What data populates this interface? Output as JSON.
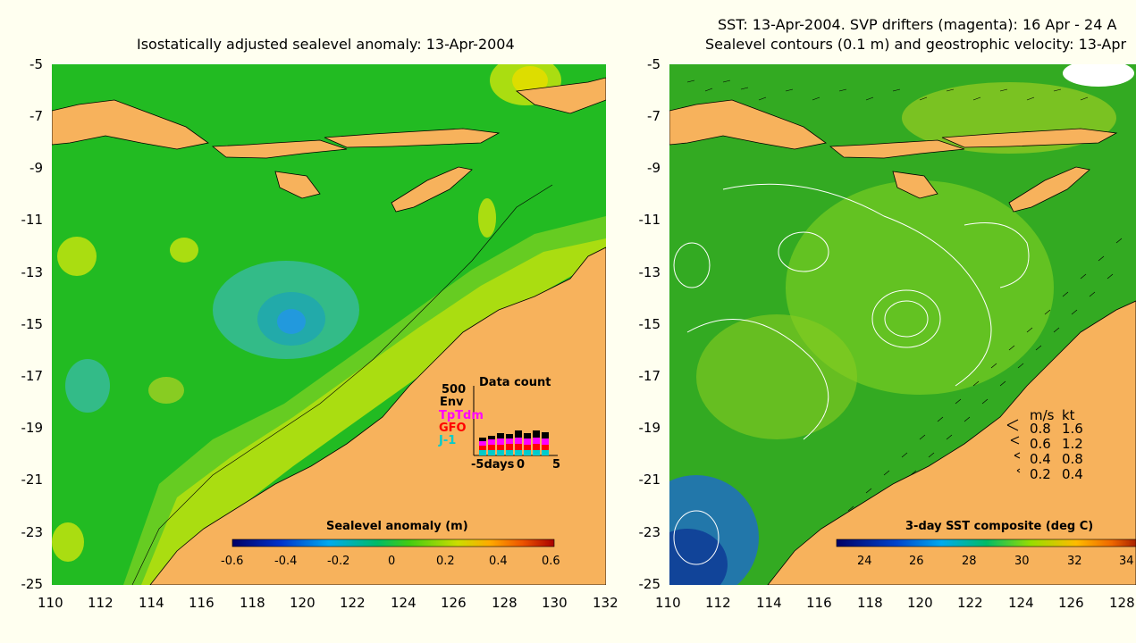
{
  "left": {
    "title": "Isostatically adjusted sealevel anomaly: 13-Apr-2004",
    "colorbar": {
      "label": "Sealevel anomaly (m)",
      "ticks": [
        "-0.6",
        "-0.4",
        "-0.2",
        "0",
        "0.2",
        "0.4",
        "0.6"
      ]
    },
    "data_count": {
      "title": "Data count",
      "scale_label": "500",
      "legend": [
        {
          "label": "Env",
          "color": "#000000"
        },
        {
          "label": "TpTdm",
          "color": "#ff00ff"
        },
        {
          "label": "GFO",
          "color": "#ff0000"
        },
        {
          "label": "J-1",
          "color": "#00cccc"
        }
      ],
      "xlabel_left": "-5days",
      "xlabel_mid": "0",
      "xlabel_right": "5"
    },
    "xticks": [
      "110",
      "112",
      "114",
      "116",
      "118",
      "120",
      "122",
      "124",
      "126",
      "128",
      "130",
      "132"
    ]
  },
  "right": {
    "title_line1": "SST: 13-Apr-2004. SVP drifters (magenta): 16 Apr - 24 A",
    "title_line2": "Sealevel contours (0.1 m) and geostrophic velocity: 13-Apr",
    "colorbar": {
      "label": "3-day SST composite (deg C)",
      "ticks": [
        "24",
        "26",
        "28",
        "30",
        "32",
        "34"
      ]
    },
    "speed_legend": {
      "header_ms": "m/s",
      "header_kt": "kt",
      "rows": [
        {
          "ms": "0.8",
          "kt": "1.6"
        },
        {
          "ms": "0.6",
          "kt": "1.2"
        },
        {
          "ms": "0.4",
          "kt": "0.8"
        },
        {
          "ms": "0.2",
          "kt": "0.4"
        }
      ]
    },
    "xticks": [
      "110",
      "112",
      "114",
      "116",
      "118",
      "120",
      "122",
      "124",
      "126",
      "128"
    ]
  },
  "yticks": [
    "-5",
    "-7",
    "-9",
    "-11",
    "-13",
    "-15",
    "-17",
    "-19",
    "-21",
    "-23",
    "-25"
  ],
  "colors": {
    "land": "#f7b25c",
    "ocean_base": "#22bb22",
    "sst_base": "#33aa22",
    "background": "#fffff0"
  }
}
